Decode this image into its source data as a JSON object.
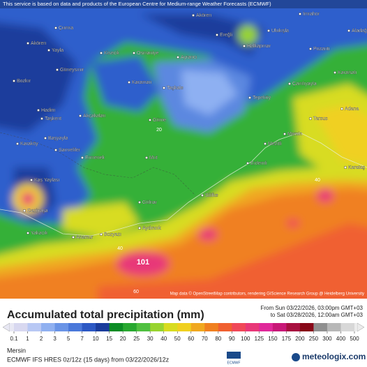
{
  "banner": "This service is based on data and products of the European Centre for Medium-range Weather Forecasts (ECMWF)",
  "places": [
    "Akören",
    "Çumra",
    "Ereğli",
    "Ulukışla",
    "İmrahor",
    "Aladağ",
    "Akören",
    "Yayla",
    "Kisecik",
    "Osmaniye",
    "Ayrancı",
    "Halkapınar",
    "Pozantı",
    "Güneysınır",
    "Karaman",
    "Karaisalı",
    "Bozkır",
    "Taşkale",
    "Çamlıyayla",
    "Tepeköy",
    "Hadim",
    "Akçakalan",
    "Taşkent",
    "Güme",
    "Adana",
    "Tarsus",
    "Mersin",
    "Karaköy",
    "Başyayla",
    "Sarıveliler",
    "Ermenek",
    "Mut",
    "Mezitli",
    "Erdemli",
    "Karataş",
    "Kaş Yaylası",
    "Gülnar",
    "Silifke",
    "Gazipaşa",
    "Aydıncık",
    "Bozyazı",
    "Anamur",
    "Yakacık"
  ],
  "contour_labels": [
    "101",
    "40",
    "40",
    "60",
    "20"
  ],
  "attribution": "Map data © OpenStreetMap contributors, rendering GIScience Research Group @ Heidelberg University",
  "legend": {
    "title": "Accumulated total precipitation (mm)",
    "period_from": "From Sun 03/22/2026, 03:00pm GMT+03",
    "period_to": "to Sat 03/28/2026, 12:00am GMT+03",
    "levels": [
      "0.1",
      "1",
      "2",
      "3",
      "5",
      "7",
      "10",
      "15",
      "20",
      "25",
      "30",
      "40",
      "50",
      "60",
      "70",
      "80",
      "90",
      "100",
      "125",
      "150",
      "175",
      "200",
      "250",
      "300",
      "400",
      "500"
    ],
    "colors": [
      "#d8d8f0",
      "#b8c8f4",
      "#90b0f0",
      "#6a94e6",
      "#4a78da",
      "#2c58c4",
      "#1a3c9c",
      "#0c8c24",
      "#28a830",
      "#50c040",
      "#98d430",
      "#d8dc20",
      "#f0d020",
      "#f0a820",
      "#f08020",
      "#f06030",
      "#f04858",
      "#e83878",
      "#e0289a",
      "#c81878",
      "#a81040",
      "#880818",
      "#909090",
      "#b8b8b8",
      "#d8d8d8"
    ]
  },
  "location": "Mersin",
  "model": "ECMWF IFS HRES 0z/12z (15 days) from 03/22/2026/12z",
  "logos": [
    "ECMWF",
    "meteologix.com"
  ]
}
